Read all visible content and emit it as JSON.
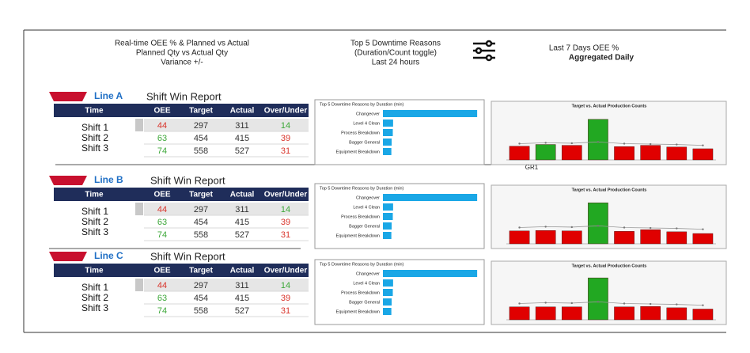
{
  "header": {
    "oee_note": [
      "Real-time OEE % & Planned vs Actual",
      "Planned Qty vs Actual Qty",
      "Variance +/-"
    ],
    "downtime_note": [
      "Top 5 Downtime Reasons",
      "(Duration/Count toggle)",
      "Last 24 hours"
    ],
    "trend_note": [
      "Last 7 Days OEE %",
      "Aggregated Daily"
    ]
  },
  "gr_label": "GR1",
  "lines": [
    {
      "name": "Line A",
      "report_title": "Shift Win Report",
      "table": {
        "columns": [
          "Time",
          "OEE",
          "Target",
          "Actual",
          "Over/Under"
        ],
        "rows": [
          [
            "Shift 1",
            44,
            297,
            311,
            14
          ],
          [
            "Shift 2",
            63,
            454,
            415,
            39
          ],
          [
            "Shift 3",
            74,
            558,
            527,
            31
          ]
        ],
        "oee_colors": [
          "#d9342b",
          "#3ea83a",
          "#3ea83a"
        ],
        "variance_colors": [
          "#3ea83a",
          "#d9342b",
          "#d9342b"
        ]
      },
      "downtime": {
        "type": "bar",
        "title": "Top 5 Downtime Reasons by Duration (min)",
        "categories": [
          "Changeover",
          "Level 4 Clean",
          "Process Breakdown",
          "Bagger General",
          "Equipment Breakdown"
        ],
        "values": [
          1620,
          175,
          170,
          150,
          145
        ],
        "xlim": [
          0,
          1700
        ],
        "color": "#1aa7e6"
      },
      "production": {
        "type": "bar",
        "title": "Target vs. Actual Production Counts",
        "values": [
          32,
          36,
          34,
          95,
          31,
          34,
          30,
          26
        ],
        "target": [
          38,
          40,
          39,
          42,
          38,
          37,
          36,
          34
        ],
        "colors": [
          "#e00000",
          "#22a822",
          "#e00000",
          "#22a822",
          "#e00000",
          "#e00000",
          "#e00000",
          "#e00000"
        ],
        "ylim": [
          0,
          100
        ]
      }
    },
    {
      "name": "Line B",
      "report_title": "Shift Win Report",
      "table": {
        "columns": [
          "Time",
          "OEE",
          "Target",
          "Actual",
          "Over/Under"
        ],
        "rows": [
          [
            "Shift 1",
            44,
            297,
            311,
            14
          ],
          [
            "Shift 2",
            63,
            454,
            415,
            39
          ],
          [
            "Shift 3",
            74,
            558,
            527,
            31
          ]
        ],
        "oee_colors": [
          "#d9342b",
          "#3ea83a",
          "#3ea83a"
        ],
        "variance_colors": [
          "#3ea83a",
          "#d9342b",
          "#d9342b"
        ]
      },
      "downtime": {
        "type": "bar",
        "title": "Top 5 Downtime Reasons by Duration (min)",
        "categories": [
          "Changeover",
          "Level 4 Clean",
          "Process Breakdown",
          "Bagger General",
          "Equipment Breakdown"
        ],
        "values": [
          1620,
          175,
          170,
          150,
          145
        ],
        "xlim": [
          0,
          1700
        ],
        "color": "#1aa7e6"
      },
      "production": {
        "type": "bar",
        "title": "Target vs. Actual Production Counts",
        "values": [
          30,
          31,
          30,
          96,
          29,
          33,
          28,
          24
        ],
        "target": [
          38,
          40,
          39,
          42,
          38,
          37,
          36,
          34
        ],
        "colors": [
          "#e00000",
          "#e00000",
          "#e00000",
          "#22a822",
          "#e00000",
          "#e00000",
          "#e00000",
          "#e00000"
        ],
        "ylim": [
          0,
          100
        ]
      }
    },
    {
      "name": "Line C",
      "report_title": "Shift Win Report",
      "table": {
        "columns": [
          "Time",
          "OEE",
          "Target",
          "Actual",
          "Over/Under"
        ],
        "rows": [
          [
            "Shift 1",
            44,
            297,
            311,
            14
          ],
          [
            "Shift 2",
            63,
            454,
            415,
            39
          ],
          [
            "Shift 3",
            74,
            558,
            527,
            31
          ]
        ],
        "oee_colors": [
          "#d9342b",
          "#3ea83a",
          "#3ea83a"
        ],
        "variance_colors": [
          "#3ea83a",
          "#d9342b",
          "#d9342b"
        ]
      },
      "downtime": {
        "type": "bar",
        "title": "Top 5 Downtime Reasons by Duration (min)",
        "categories": [
          "Changeover",
          "Level 4 Clean",
          "Process Breakdown",
          "Bagger General",
          "Equipment Breakdown"
        ],
        "values": [
          1620,
          175,
          170,
          150,
          145
        ],
        "xlim": [
          0,
          1700
        ],
        "color": "#1aa7e6"
      },
      "production": {
        "type": "bar",
        "title": "Target vs. Actual Production Counts",
        "values": [
          30,
          30,
          30,
          98,
          30,
          31,
          28,
          25
        ],
        "target": [
          38,
          40,
          39,
          42,
          38,
          37,
          36,
          34
        ],
        "colors": [
          "#e00000",
          "#e00000",
          "#e00000",
          "#22a822",
          "#e00000",
          "#e00000",
          "#e00000",
          "#e00000"
        ],
        "ylim": [
          0,
          100
        ]
      }
    }
  ]
}
